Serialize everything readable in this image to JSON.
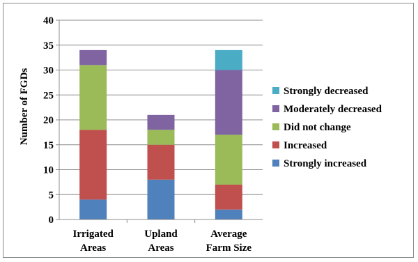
{
  "chart_data": {
    "type": "bar",
    "stacked": true,
    "categories": [
      "Irrigated Areas",
      "Upland Areas",
      "Average Farm Size"
    ],
    "category_lines": [
      [
        "Irrigated",
        "Areas"
      ],
      [
        "Upland",
        "Areas"
      ],
      [
        "Average",
        "Farm Size"
      ]
    ],
    "series": [
      {
        "name": "Strongly increased",
        "color": "#4f81bd",
        "values": [
          4,
          8,
          2
        ]
      },
      {
        "name": "Increased",
        "color": "#c0504d",
        "values": [
          14,
          7,
          5
        ]
      },
      {
        "name": "Did not change",
        "color": "#9bbb59",
        "values": [
          13,
          3,
          10
        ]
      },
      {
        "name": "Moderately decreased",
        "color": "#8064a2",
        "values": [
          3,
          3,
          13
        ]
      },
      {
        "name": "Strongly decreased",
        "color": "#4bacc6",
        "values": [
          0,
          0,
          4
        ]
      }
    ],
    "ylabel": "Number of FGDs",
    "xlabel": "",
    "ylim": [
      0,
      40
    ],
    "yticks": [
      0,
      5,
      10,
      15,
      20,
      25,
      30,
      35,
      40
    ],
    "grid": true,
    "legend_position": "right",
    "legend_order": [
      "Strongly decreased",
      "Moderately decreased",
      "Did not change",
      "Increased",
      "Strongly increased"
    ]
  }
}
